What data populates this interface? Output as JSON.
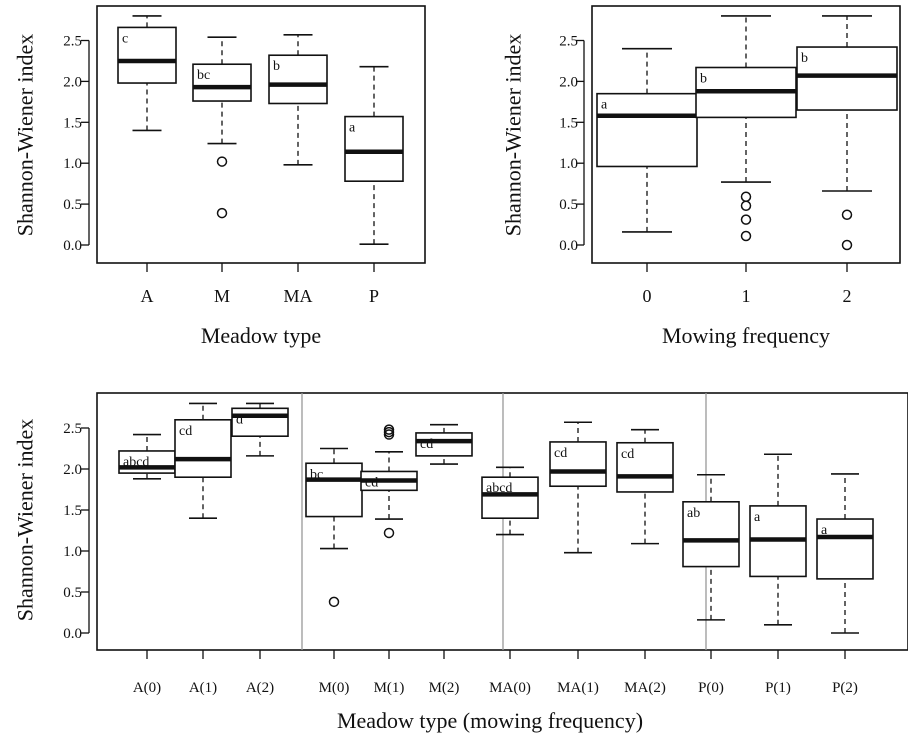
{
  "chart_data": [
    {
      "type": "boxplot",
      "xlabel": "Meadow type",
      "ylabel": "Shannon-Wiener index",
      "ylim": [
        0,
        2.75
      ],
      "yticks": [
        "0.0",
        "0.5",
        "1.0",
        "1.5",
        "2.0",
        "2.5"
      ],
      "categories": [
        "A",
        "M",
        "MA",
        "P"
      ],
      "boxes": [
        {
          "category": "A",
          "whisker_low": 1.4,
          "q1": 1.98,
          "median": 2.25,
          "q3": 2.66,
          "whisker_high": 2.8,
          "outliers": [],
          "letter": "c"
        },
        {
          "category": "M",
          "whisker_low": 1.24,
          "q1": 1.76,
          "median": 1.93,
          "q3": 2.21,
          "whisker_high": 2.54,
          "outliers": [
            1.02,
            0.39
          ],
          "letter": "bc"
        },
        {
          "category": "MA",
          "whisker_low": 0.98,
          "q1": 1.73,
          "median": 1.96,
          "q3": 2.32,
          "whisker_high": 2.57,
          "outliers": [],
          "letter": "b"
        },
        {
          "category": "P",
          "whisker_low": 0.01,
          "q1": 0.78,
          "median": 1.14,
          "q3": 1.57,
          "whisker_high": 2.18,
          "outliers": [],
          "letter": "a"
        }
      ]
    },
    {
      "type": "boxplot",
      "xlabel": "Mowing frequency",
      "ylabel": "Shannon-Wiener index",
      "ylim": [
        0,
        2.75
      ],
      "yticks": [
        "0.0",
        "0.5",
        "1.0",
        "1.5",
        "2.0",
        "2.5"
      ],
      "categories": [
        "0",
        "1",
        "2"
      ],
      "boxes": [
        {
          "category": "0",
          "whisker_low": 0.16,
          "q1": 0.96,
          "median": 1.58,
          "q3": 1.85,
          "whisker_high": 2.4,
          "outliers": [],
          "letter": "a"
        },
        {
          "category": "1",
          "whisker_low": 0.77,
          "q1": 1.56,
          "median": 1.88,
          "q3": 2.17,
          "whisker_high": 2.8,
          "outliers": [
            0.59,
            0.48,
            0.31,
            0.11
          ],
          "letter": "b"
        },
        {
          "category": "2",
          "whisker_low": 0.66,
          "q1": 1.65,
          "median": 2.07,
          "q3": 2.42,
          "whisker_high": 2.8,
          "outliers": [
            0.37,
            0.0
          ],
          "letter": "b"
        }
      ]
    },
    {
      "type": "boxplot",
      "xlabel": "Meadow type (mowing frequency)",
      "ylabel": "Shannon-Wiener index",
      "ylim": [
        0,
        2.85
      ],
      "yticks": [
        "0.0",
        "0.5",
        "1.0",
        "1.5",
        "2.0",
        "2.5"
      ],
      "categories": [
        "A(0)",
        "A(1)",
        "A(2)",
        "M(0)",
        "M(1)",
        "M(2)",
        "MA(0)",
        "MA(1)",
        "MA(2)",
        "P(0)",
        "P(1)",
        "P(2)"
      ],
      "boxes": [
        {
          "category": "A(0)",
          "whisker_low": 1.88,
          "q1": 1.95,
          "median": 2.02,
          "q3": 2.22,
          "whisker_high": 2.42,
          "outliers": [],
          "letter": "abcd"
        },
        {
          "category": "A(1)",
          "whisker_low": 1.4,
          "q1": 1.9,
          "median": 2.12,
          "q3": 2.6,
          "whisker_high": 2.8,
          "outliers": [],
          "letter": "cd"
        },
        {
          "category": "A(2)",
          "whisker_low": 2.16,
          "q1": 2.4,
          "median": 2.65,
          "q3": 2.74,
          "whisker_high": 2.8,
          "outliers": [],
          "letter": "d"
        },
        {
          "category": "M(0)",
          "whisker_low": 1.03,
          "q1": 1.42,
          "median": 1.87,
          "q3": 2.07,
          "whisker_high": 2.25,
          "outliers": [
            0.38
          ],
          "letter": "bc"
        },
        {
          "category": "M(1)",
          "whisker_low": 1.39,
          "q1": 1.74,
          "median": 1.86,
          "q3": 1.97,
          "whisker_high": 2.21,
          "outliers": [
            2.48,
            2.45,
            2.42,
            1.22
          ],
          "letter": "cd"
        },
        {
          "category": "M(2)",
          "whisker_low": 2.06,
          "q1": 2.16,
          "median": 2.34,
          "q3": 2.44,
          "whisker_high": 2.54,
          "outliers": [],
          "letter": "cd"
        },
        {
          "category": "MA(0)",
          "whisker_low": 1.2,
          "q1": 1.4,
          "median": 1.69,
          "q3": 1.9,
          "whisker_high": 2.02,
          "outliers": [],
          "letter": "abcd"
        },
        {
          "category": "MA(1)",
          "whisker_low": 0.98,
          "q1": 1.79,
          "median": 1.97,
          "q3": 2.33,
          "whisker_high": 2.57,
          "outliers": [],
          "letter": "cd"
        },
        {
          "category": "MA(2)",
          "whisker_low": 1.09,
          "q1": 1.72,
          "median": 1.91,
          "q3": 2.32,
          "whisker_high": 2.48,
          "outliers": [],
          "letter": "cd"
        },
        {
          "category": "P(0)",
          "whisker_low": 0.16,
          "q1": 0.81,
          "median": 1.13,
          "q3": 1.6,
          "whisker_high": 1.93,
          "outliers": [],
          "letter": "ab"
        },
        {
          "category": "P(1)",
          "whisker_low": 0.1,
          "q1": 0.69,
          "median": 1.14,
          "q3": 1.55,
          "whisker_high": 2.18,
          "outliers": [],
          "letter": "a"
        },
        {
          "category": "P(2)",
          "whisker_low": 0.0,
          "q1": 0.66,
          "median": 1.17,
          "q3": 1.39,
          "whisker_high": 1.94,
          "outliers": [],
          "letter": "a"
        }
      ],
      "group_dividers_after": [
        "A(2)",
        "M(2)",
        "MA(2)"
      ]
    }
  ]
}
